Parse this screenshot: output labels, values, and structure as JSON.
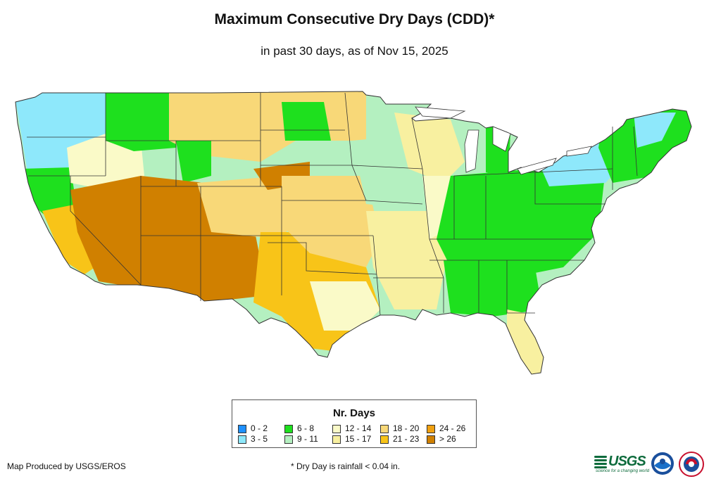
{
  "title": "Maximum Consecutive Dry Days (CDD)*",
  "subtitle": "in past 30 days, as of Nov 15, 2025",
  "legend": {
    "title": "Nr. Days",
    "items": [
      {
        "label": "0 - 2",
        "color": "#1e90ff"
      },
      {
        "label": "3 - 5",
        "color": "#8ee8fb"
      },
      {
        "label": "6 - 8",
        "color": "#1ee01e"
      },
      {
        "label": "9 - 11",
        "color": "#b4f0c0"
      },
      {
        "label": "12 - 14",
        "color": "#fafac8"
      },
      {
        "label": "15 - 17",
        "color": "#f8f0a0"
      },
      {
        "label": "18 - 20",
        "color": "#f8d878"
      },
      {
        "label": "21 - 23",
        "color": "#f8c418"
      },
      {
        "label": "24 - 26",
        "color": "#f0a010"
      },
      {
        "label": "> 26",
        "color": "#d08000"
      }
    ]
  },
  "footer": {
    "producer": "Map Produced by USGS/EROS",
    "note": "* Dry Day is rainfall < 0.04 in."
  },
  "logos": {
    "usgs": "USGS",
    "usgs_tagline": "science for a changing world"
  }
}
